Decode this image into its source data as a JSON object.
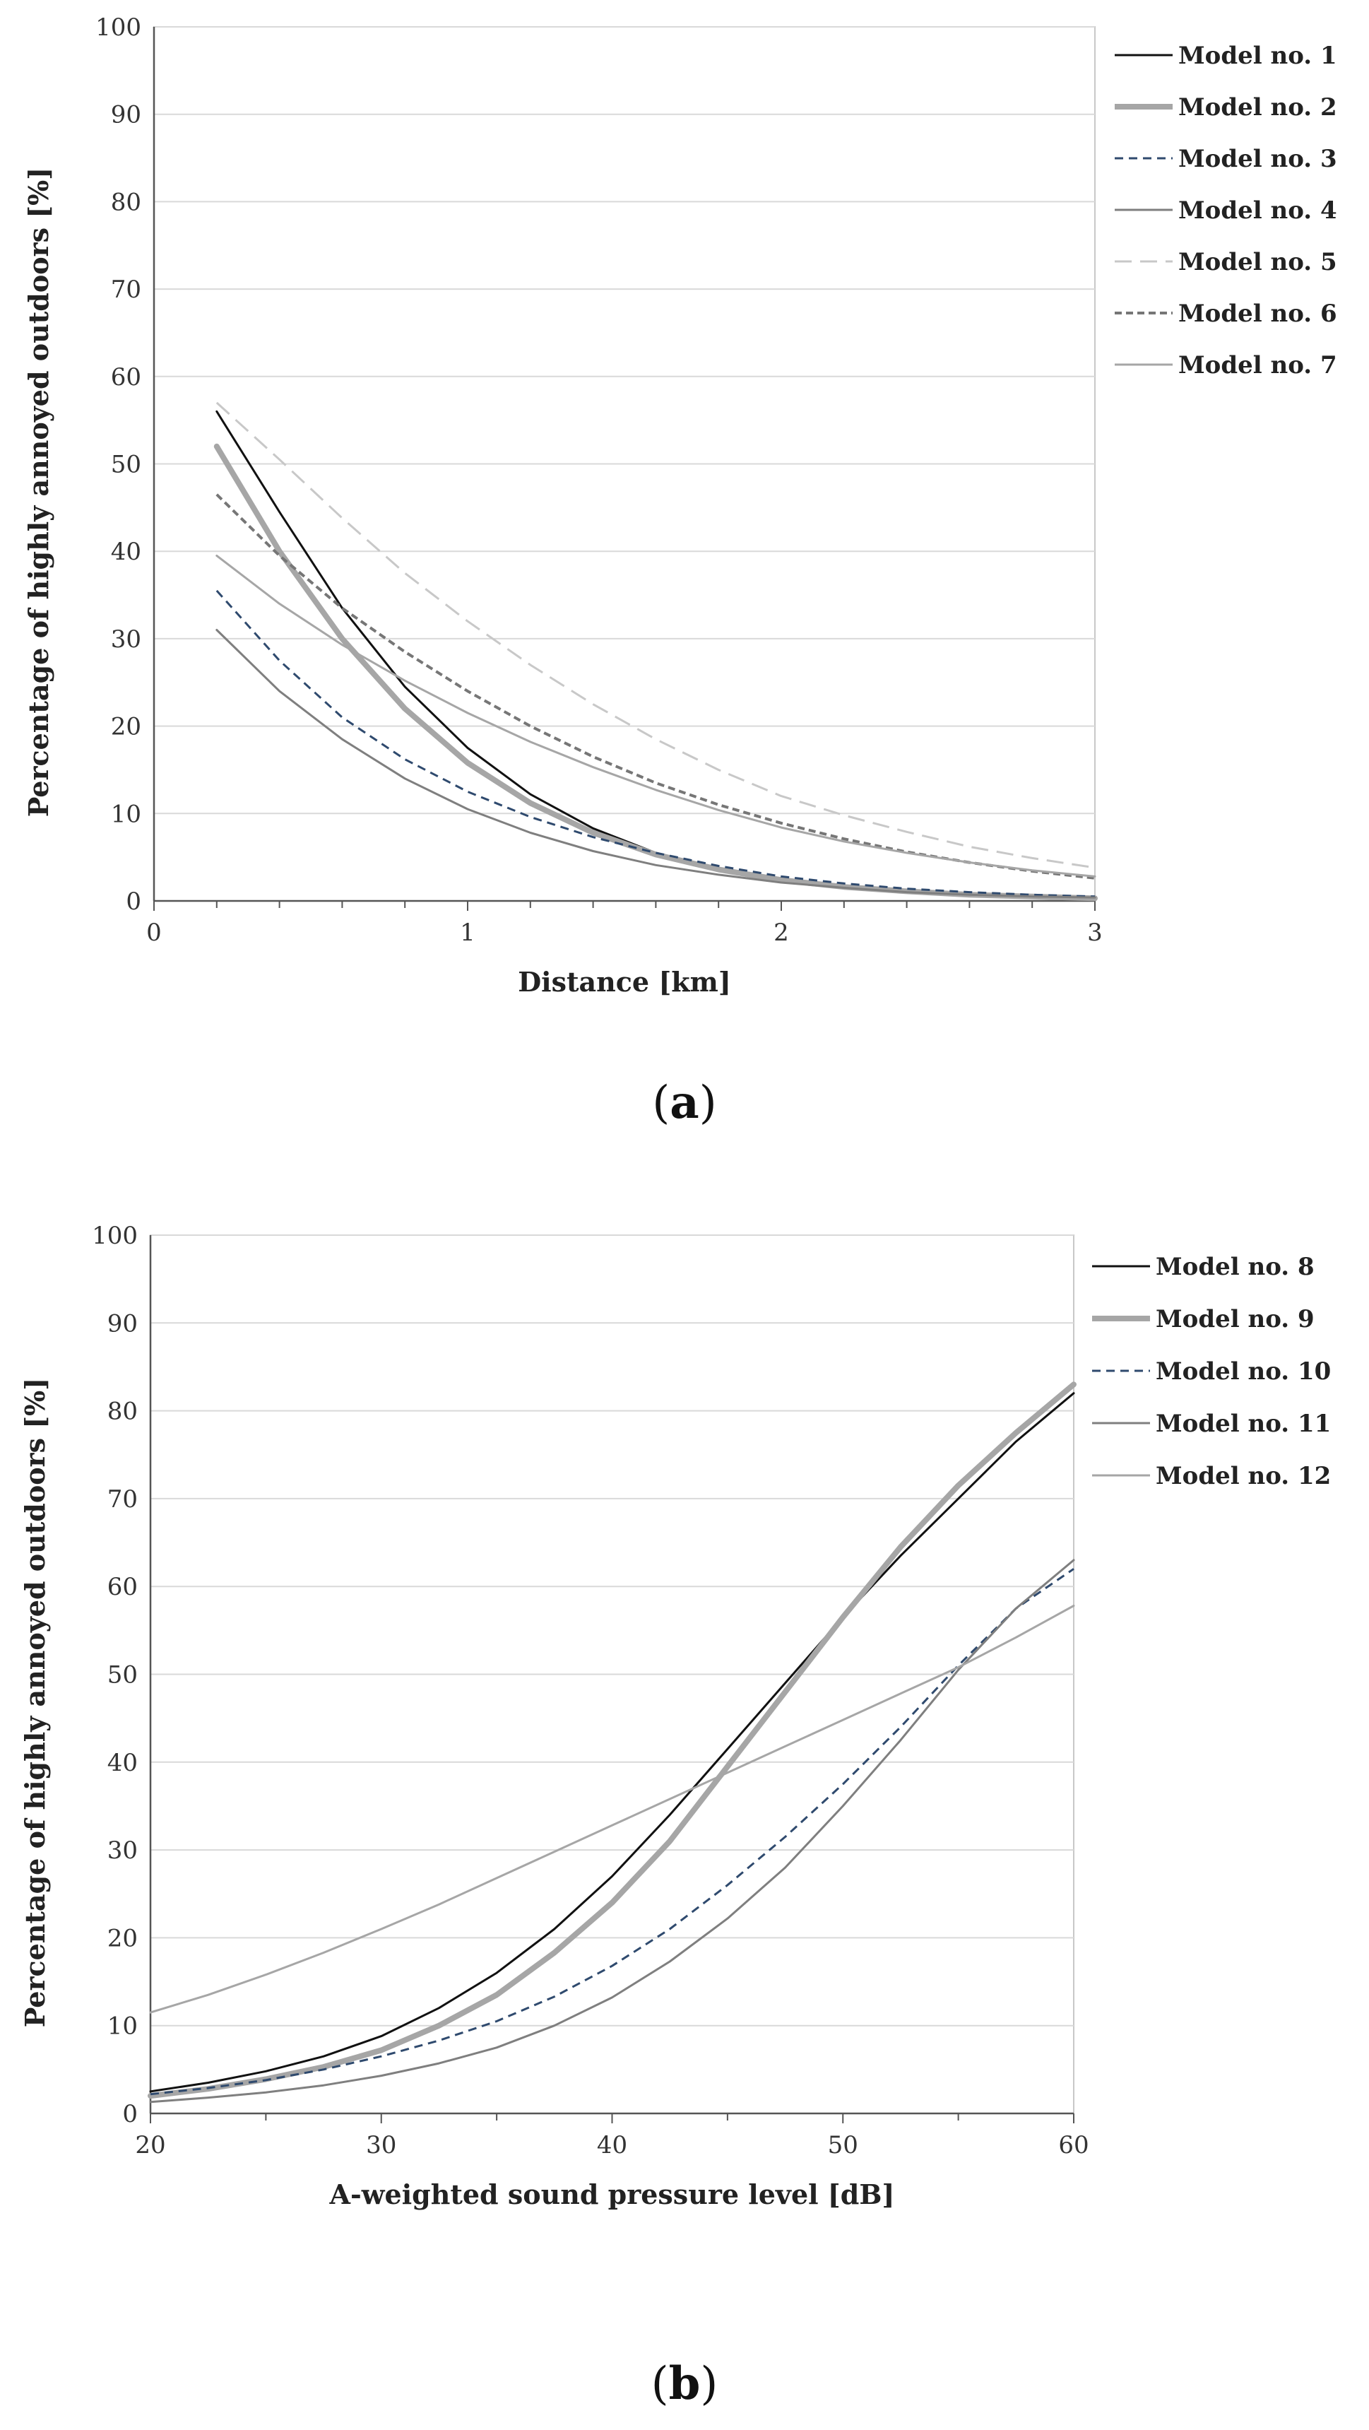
{
  "chart_data": [
    {
      "type": "line",
      "panel_label": "a",
      "title": "",
      "xlabel": "Distance [km]",
      "ylabel": "Percentage of highly annoyed outdoors [%]",
      "xlim": [
        0,
        3
      ],
      "ylim": [
        0,
        100
      ],
      "xticks": [
        0,
        1,
        2,
        3
      ],
      "xminor_step": 0.2,
      "yticks": [
        0,
        10,
        20,
        30,
        40,
        50,
        60,
        70,
        80,
        90,
        100
      ],
      "grid": true,
      "legend_position": "right",
      "x": [
        0.2,
        0.4,
        0.6,
        0.8,
        1.0,
        1.2,
        1.4,
        1.6,
        1.8,
        2.0,
        2.2,
        2.4,
        2.6,
        2.8,
        3.0
      ],
      "series": [
        {
          "name": "Model no. 1",
          "color": "#111111",
          "width": 3,
          "dash": "",
          "values": [
            56,
            44.5,
            33.5,
            24.5,
            17.5,
            12.2,
            8.3,
            5.5,
            3.6,
            2.3,
            1.5,
            1.0,
            0.7,
            0.5,
            0.4
          ]
        },
        {
          "name": "Model no. 2",
          "color": "#a6a6a6",
          "width": 8,
          "dash": "",
          "values": [
            52,
            40,
            30,
            22,
            15.8,
            11.2,
            7.8,
            5.3,
            3.6,
            2.4,
            1.6,
            1.1,
            0.7,
            0.5,
            0.3
          ]
        },
        {
          "name": "Model no. 3",
          "color": "#2f4a6e",
          "width": 3,
          "dash": "12,8",
          "values": [
            35.5,
            27.5,
            21,
            16.2,
            12.5,
            9.6,
            7.3,
            5.5,
            4.0,
            2.8,
            2.0,
            1.4,
            1.0,
            0.7,
            0.5
          ]
        },
        {
          "name": "Model no. 4",
          "color": "#7f7f7f",
          "width": 3,
          "dash": "",
          "values": [
            31,
            24,
            18.5,
            14,
            10.5,
            7.8,
            5.7,
            4.1,
            3.0,
            2.1,
            1.5,
            1.0,
            0.7,
            0.5,
            0.4
          ]
        },
        {
          "name": "Model no. 5",
          "color": "#c8c8c8",
          "width": 3,
          "dash": "24,12",
          "values": [
            57,
            50.5,
            43.8,
            37.5,
            32,
            27,
            22.5,
            18.5,
            15,
            12,
            9.8,
            7.9,
            6.2,
            4.9,
            3.8
          ]
        },
        {
          "name": "Model no. 6",
          "color": "#767676",
          "width": 4,
          "dash": "10,6",
          "values": [
            46.5,
            39.5,
            33.5,
            28.5,
            24,
            20,
            16.5,
            13.5,
            11,
            8.9,
            7.1,
            5.6,
            4.4,
            3.4,
            2.6
          ]
        },
        {
          "name": "Model no. 7",
          "color": "#a6a6a6",
          "width": 3,
          "dash": "",
          "values": [
            39.5,
            34,
            29.3,
            25.2,
            21.5,
            18.2,
            15.3,
            12.7,
            10.4,
            8.4,
            6.8,
            5.5,
            4.4,
            3.5,
            2.8
          ]
        }
      ]
    },
    {
      "type": "line",
      "panel_label": "b",
      "title": "",
      "xlabel": "A-weighted sound pressure level  [dB]",
      "ylabel": "Percentage of highly annoyed outdoors [%]",
      "xlim": [
        20,
        60
      ],
      "ylim": [
        0,
        100
      ],
      "xticks": [
        20,
        30,
        40,
        50,
        60
      ],
      "xminor_step": 5,
      "yticks": [
        0,
        10,
        20,
        30,
        40,
        50,
        60,
        70,
        80,
        90,
        100
      ],
      "grid": true,
      "legend_position": "right",
      "x": [
        20,
        22.5,
        25,
        27.5,
        30,
        32.5,
        35,
        37.5,
        40,
        42.5,
        45,
        47.5,
        50,
        52.5,
        55,
        57.5,
        60
      ],
      "series": [
        {
          "name": "Model no. 8",
          "color": "#111111",
          "width": 3,
          "dash": "",
          "values": [
            2.5,
            3.5,
            4.8,
            6.5,
            8.8,
            12,
            16,
            21,
            27,
            34,
            41.5,
            49,
            56.5,
            63.5,
            70,
            76.5,
            82
          ]
        },
        {
          "name": "Model no. 9",
          "color": "#a6a6a6",
          "width": 8,
          "dash": "",
          "values": [
            2.0,
            2.8,
            3.9,
            5.3,
            7.2,
            10,
            13.5,
            18.3,
            24,
            31,
            39.5,
            48,
            56.5,
            64.5,
            71.5,
            77.5,
            83
          ]
        },
        {
          "name": "Model no. 10",
          "color": "#2f4a6e",
          "width": 3,
          "dash": "12,8",
          "values": [
            2.2,
            2.9,
            3.8,
            5.0,
            6.5,
            8.3,
            10.5,
            13.3,
            16.8,
            21,
            26,
            31.5,
            37.5,
            44,
            51,
            57.5,
            62
          ]
        },
        {
          "name": "Model no. 11",
          "color": "#7f7f7f",
          "width": 3,
          "dash": "",
          "values": [
            1.3,
            1.8,
            2.4,
            3.2,
            4.3,
            5.7,
            7.5,
            10,
            13.2,
            17.3,
            22.2,
            28,
            35,
            42.5,
            50.5,
            57.5,
            63
          ]
        },
        {
          "name": "Model no. 12",
          "color": "#a6a6a6",
          "width": 3,
          "dash": "",
          "values": [
            11.5,
            13.5,
            15.8,
            18.3,
            21,
            23.8,
            26.8,
            29.8,
            32.8,
            35.8,
            38.8,
            41.8,
            44.8,
            47.8,
            50.8,
            54.2,
            57.8
          ]
        }
      ]
    }
  ]
}
